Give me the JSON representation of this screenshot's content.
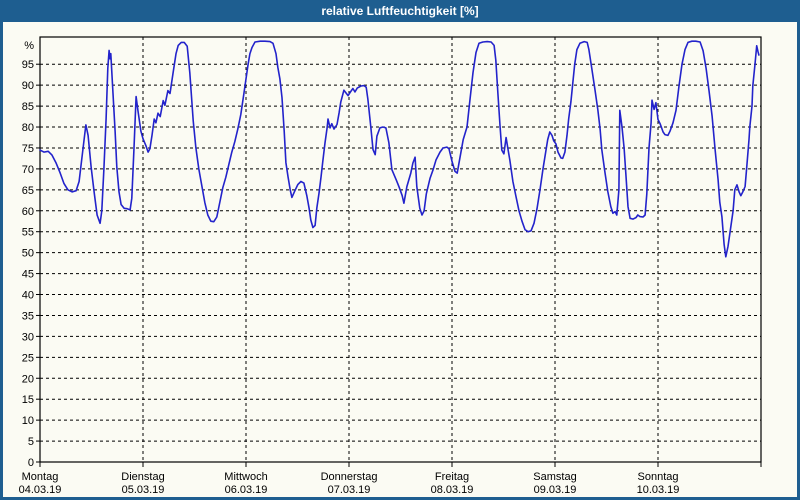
{
  "window": {
    "title": "relative Luftfeuchtigkeit [%]"
  },
  "colors": {
    "frame": "#1e5e90",
    "title_text": "#ffffff",
    "background": "#fbfbf3",
    "grid": "#000000",
    "axis": "#000000",
    "line": "#2323cb",
    "label_text": "#000000"
  },
  "chart_data": {
    "type": "line",
    "title": "relative Luftfeuchtigkeit [%]",
    "ylabel": "%",
    "ylim": [
      0,
      101.5
    ],
    "x_range_hours": [
      0,
      168
    ],
    "grid": "dashed",
    "legend": "none",
    "y_ticks": [
      0,
      5,
      10,
      15,
      20,
      25,
      30,
      35,
      40,
      45,
      50,
      55,
      60,
      65,
      70,
      75,
      80,
      85,
      90,
      95
    ],
    "x_days": [
      {
        "label": "Montag",
        "date": "04.03.19"
      },
      {
        "label": "Dienstag",
        "date": "05.03.19"
      },
      {
        "label": "Mittwoch",
        "date": "06.03.19"
      },
      {
        "label": "Donnerstag",
        "date": "07.03.19"
      },
      {
        "label": "Freitag",
        "date": "08.03.19"
      },
      {
        "label": "Samstag",
        "date": "09.03.19"
      },
      {
        "label": "Sonntag",
        "date": "10.03.19"
      }
    ],
    "series": [
      {
        "name": "relative Luftfeuchtigkeit",
        "unit": "%",
        "color": "#2323cb",
        "points": [
          [
            0,
            74.5
          ],
          [
            0.9,
            74
          ],
          [
            1.9,
            74.2
          ],
          [
            2.8,
            73.3
          ],
          [
            3.7,
            71.5
          ],
          [
            4.7,
            69
          ],
          [
            5.6,
            66.5
          ],
          [
            6.5,
            65
          ],
          [
            7.5,
            64.5
          ],
          [
            8.4,
            64.8
          ],
          [
            9.1,
            67
          ],
          [
            9.8,
            73
          ],
          [
            10.5,
            79
          ],
          [
            10.7,
            80.5
          ],
          [
            11.2,
            78
          ],
          [
            11.9,
            70.5
          ],
          [
            12.6,
            64.5
          ],
          [
            13.3,
            59
          ],
          [
            14,
            57
          ],
          [
            14.4,
            60
          ],
          [
            14.9,
            70
          ],
          [
            15.4,
            82
          ],
          [
            15.8,
            94
          ],
          [
            16.1,
            98.3
          ],
          [
            16.3,
            96.3
          ],
          [
            16.5,
            97.5
          ],
          [
            17,
            88
          ],
          [
            17.5,
            79
          ],
          [
            17.9,
            70.5
          ],
          [
            18.4,
            64.5
          ],
          [
            18.9,
            61.5
          ],
          [
            19.6,
            60.6
          ],
          [
            20.3,
            60.5
          ],
          [
            21,
            60.2
          ],
          [
            21.4,
            63
          ],
          [
            21.9,
            75
          ],
          [
            22.4,
            87.3
          ],
          [
            22.8,
            84
          ],
          [
            23.5,
            79
          ],
          [
            24,
            77.2
          ],
          [
            24.7,
            75.5
          ],
          [
            25.2,
            74
          ],
          [
            25.6,
            74.8
          ],
          [
            26.1,
            78
          ],
          [
            26.6,
            81.9
          ],
          [
            27,
            81
          ],
          [
            27.5,
            83.3
          ],
          [
            28,
            82.5
          ],
          [
            28.7,
            86.3
          ],
          [
            29.1,
            85.2
          ],
          [
            29.8,
            88.7
          ],
          [
            30.3,
            88
          ],
          [
            31,
            92.8
          ],
          [
            31.7,
            97.5
          ],
          [
            32.2,
            99.5
          ],
          [
            32.9,
            100.2
          ],
          [
            33.6,
            100.2
          ],
          [
            34.3,
            99.3
          ],
          [
            34.9,
            93
          ],
          [
            35.7,
            81.5
          ],
          [
            36.3,
            75.2
          ],
          [
            37,
            70
          ],
          [
            37.7,
            66
          ],
          [
            38.4,
            62
          ],
          [
            39.1,
            59
          ],
          [
            39.8,
            57.5
          ],
          [
            40.5,
            57.4
          ],
          [
            41.2,
            58.5
          ],
          [
            41.9,
            62
          ],
          [
            42.6,
            65.5
          ],
          [
            43.3,
            68
          ],
          [
            44,
            71
          ],
          [
            44.7,
            74
          ],
          [
            45.4,
            76.5
          ],
          [
            46.1,
            79.5
          ],
          [
            46.8,
            83
          ],
          [
            47.5,
            88
          ],
          [
            48,
            91.5
          ],
          [
            48.5,
            95
          ],
          [
            48.9,
            97.5
          ],
          [
            49.4,
            99
          ],
          [
            50.1,
            100.3
          ],
          [
            51.3,
            100.5
          ],
          [
            52.4,
            100.5
          ],
          [
            53.6,
            100.4
          ],
          [
            54.3,
            100
          ],
          [
            55,
            97.5
          ],
          [
            55.4,
            94.3
          ],
          [
            55.9,
            91.5
          ],
          [
            56.4,
            87
          ],
          [
            56.9,
            79
          ],
          [
            57.3,
            71.5
          ],
          [
            57.8,
            68
          ],
          [
            58.3,
            65
          ],
          [
            58.7,
            63.2
          ],
          [
            59.4,
            64.8
          ],
          [
            60.1,
            66.3
          ],
          [
            60.8,
            67
          ],
          [
            61.5,
            66.6
          ],
          [
            62.2,
            63.5
          ],
          [
            62.7,
            60.6
          ],
          [
            63.1,
            57.8
          ],
          [
            63.6,
            56
          ],
          [
            64.1,
            56.5
          ],
          [
            64.5,
            60.6
          ],
          [
            65,
            64.2
          ],
          [
            65.5,
            68.2
          ],
          [
            65.9,
            71.8
          ],
          [
            66.4,
            76.2
          ],
          [
            66.9,
            79.8
          ],
          [
            67.1,
            81.9
          ],
          [
            67.6,
            79.8
          ],
          [
            68,
            80.8
          ],
          [
            68.5,
            79.5
          ],
          [
            69.2,
            80.6
          ],
          [
            69.7,
            83.4
          ],
          [
            70.1,
            86
          ],
          [
            70.8,
            88.8
          ],
          [
            71.8,
            87.5
          ],
          [
            72.5,
            88.6
          ],
          [
            72.9,
            89.2
          ],
          [
            73.4,
            88.4
          ],
          [
            73.9,
            89.3
          ],
          [
            74.8,
            89.8
          ],
          [
            75.5,
            89.9
          ],
          [
            76,
            89.5
          ],
          [
            76.4,
            86.6
          ],
          [
            77.1,
            79.8
          ],
          [
            77.6,
            74.6
          ],
          [
            78.1,
            73.4
          ],
          [
            78.5,
            77.8
          ],
          [
            79.2,
            79.8
          ],
          [
            79.9,
            80
          ],
          [
            80.6,
            79.8
          ],
          [
            81.3,
            76.2
          ],
          [
            82,
            69.8
          ],
          [
            83,
            67.4
          ],
          [
            83.7,
            65.6
          ],
          [
            84.4,
            63.6
          ],
          [
            84.8,
            61.8
          ],
          [
            85.5,
            65.8
          ],
          [
            86.4,
            69
          ],
          [
            86.9,
            71.4
          ],
          [
            87.4,
            72.8
          ],
          [
            87.8,
            65.8
          ],
          [
            88.5,
            60.6
          ],
          [
            89,
            59
          ],
          [
            89.5,
            60
          ],
          [
            90,
            64
          ],
          [
            90.9,
            67.8
          ],
          [
            91.6,
            69.8
          ],
          [
            92.3,
            72.2
          ],
          [
            93.2,
            74
          ],
          [
            93.9,
            75
          ],
          [
            94.8,
            75.2
          ],
          [
            95.3,
            74.8
          ],
          [
            96,
            71.8
          ],
          [
            96.7,
            69.4
          ],
          [
            97.2,
            69
          ],
          [
            97.9,
            73
          ],
          [
            98.6,
            77
          ],
          [
            99.5,
            80
          ],
          [
            100.2,
            86.6
          ],
          [
            100.9,
            93
          ],
          [
            101.6,
            97.8
          ],
          [
            102.3,
            100
          ],
          [
            103.2,
            100.3
          ],
          [
            104.2,
            100.4
          ],
          [
            105.1,
            100.3
          ],
          [
            105.8,
            99.5
          ],
          [
            106.2,
            96
          ],
          [
            106.7,
            88
          ],
          [
            107.2,
            80
          ],
          [
            107.6,
            74.5
          ],
          [
            108.1,
            73.6
          ],
          [
            108.6,
            77.5
          ],
          [
            109,
            75
          ],
          [
            109.5,
            72
          ],
          [
            110.2,
            67
          ],
          [
            110.9,
            63.5
          ],
          [
            111.6,
            60
          ],
          [
            112.3,
            57.5
          ],
          [
            113,
            55.5
          ],
          [
            113.7,
            55
          ],
          [
            114.4,
            55.2
          ],
          [
            115.1,
            57
          ],
          [
            115.8,
            60.5
          ],
          [
            116.5,
            65
          ],
          [
            117.2,
            70
          ],
          [
            117.9,
            74.5
          ],
          [
            118.3,
            77
          ],
          [
            118.8,
            78.8
          ],
          [
            119.3,
            78
          ],
          [
            119.7,
            76.7
          ],
          [
            120.2,
            76
          ],
          [
            120.7,
            74
          ],
          [
            121.4,
            72.6
          ],
          [
            121.8,
            72.5
          ],
          [
            122.3,
            74
          ],
          [
            122.8,
            78
          ],
          [
            123.2,
            82
          ],
          [
            123.7,
            86
          ],
          [
            124.2,
            91
          ],
          [
            124.6,
            95
          ],
          [
            125.1,
            98.5
          ],
          [
            125.8,
            100
          ],
          [
            126.8,
            100.4
          ],
          [
            127.5,
            100.2
          ],
          [
            127.9,
            98.5
          ],
          [
            128.6,
            93.8
          ],
          [
            129.3,
            89
          ],
          [
            130,
            84
          ],
          [
            130.5,
            79.5
          ],
          [
            130.9,
            74.6
          ],
          [
            131.6,
            69.4
          ],
          [
            132.3,
            64.6
          ],
          [
            133,
            61
          ],
          [
            133.5,
            59.4
          ],
          [
            134,
            59.8
          ],
          [
            134.4,
            59
          ],
          [
            134.9,
            65
          ],
          [
            135.1,
            84
          ],
          [
            135.6,
            80
          ],
          [
            136.1,
            75
          ],
          [
            136.5,
            69
          ],
          [
            137,
            61
          ],
          [
            137.5,
            58.2
          ],
          [
            138.2,
            58
          ],
          [
            138.9,
            58.4
          ],
          [
            139.3,
            59
          ],
          [
            139.8,
            58.6
          ],
          [
            140.5,
            58.5
          ],
          [
            141,
            59
          ],
          [
            141.4,
            64
          ],
          [
            141.9,
            75
          ],
          [
            142.4,
            81
          ],
          [
            142.6,
            86.4
          ],
          [
            143.1,
            84.2
          ],
          [
            143.5,
            85.8
          ],
          [
            144,
            81.8
          ],
          [
            144.5,
            80.8
          ],
          [
            145.2,
            78.8
          ],
          [
            145.6,
            78.2
          ],
          [
            146.3,
            78
          ],
          [
            146.8,
            79
          ],
          [
            147.5,
            81
          ],
          [
            148.2,
            84
          ],
          [
            148.9,
            89.8
          ],
          [
            149.6,
            95
          ],
          [
            150.3,
            98.5
          ],
          [
            151,
            100.2
          ],
          [
            151.9,
            100.5
          ],
          [
            152.8,
            100.5
          ],
          [
            153.8,
            100.3
          ],
          [
            154.5,
            98.2
          ],
          [
            155.2,
            94
          ],
          [
            155.9,
            88.5
          ],
          [
            156.6,
            82.6
          ],
          [
            157.3,
            74.6
          ],
          [
            158,
            67.4
          ],
          [
            158.4,
            62
          ],
          [
            158.9,
            58.6
          ],
          [
            159.4,
            52
          ],
          [
            159.8,
            49
          ],
          [
            160.3,
            51.5
          ],
          [
            160.8,
            55
          ],
          [
            161.5,
            60
          ],
          [
            161.9,
            65
          ],
          [
            162.4,
            66.2
          ],
          [
            162.9,
            64.5
          ],
          [
            163.3,
            63.6
          ],
          [
            163.8,
            64.6
          ],
          [
            164.3,
            65.8
          ],
          [
            164.7,
            70.6
          ],
          [
            165.2,
            77
          ],
          [
            165.4,
            80
          ],
          [
            165.9,
            85
          ],
          [
            166.1,
            89.8
          ],
          [
            166.6,
            95
          ],
          [
            167,
            99.4
          ],
          [
            167.3,
            98
          ],
          [
            167.5,
            97.2
          ]
        ]
      }
    ]
  }
}
